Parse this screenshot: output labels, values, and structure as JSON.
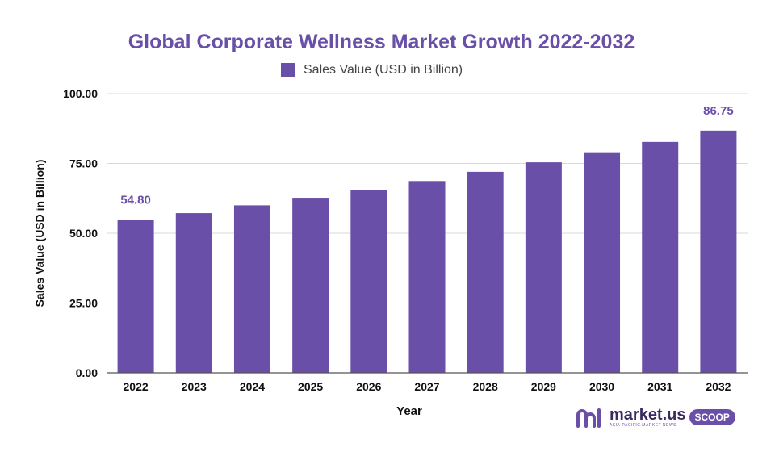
{
  "chart_data": {
    "type": "bar",
    "title": "Global Corporate Wellness Market Growth 2022-2032",
    "legend": "Sales Value (USD in Billion)",
    "xlabel": "Year",
    "ylabel": "Sales Value (USD in Billion)",
    "categories": [
      "2022",
      "2023",
      "2024",
      "2025",
      "2026",
      "2027",
      "2028",
      "2029",
      "2030",
      "2031",
      "2032"
    ],
    "series": [
      {
        "name": "Sales Value (USD in Billion)",
        "values": [
          54.8,
          57.2,
          60.0,
          62.7,
          65.6,
          68.7,
          72.0,
          75.4,
          79.0,
          82.7,
          86.75
        ]
      }
    ],
    "data_labels": [
      {
        "category": "2022",
        "text": "54.80"
      },
      {
        "category": "2032",
        "text": "86.75"
      }
    ],
    "yticks": [
      "0.00",
      "25.00",
      "50.00",
      "75.00",
      "100.00"
    ],
    "ylim": [
      0,
      100
    ],
    "grid": true,
    "legend_position": "top",
    "colors": {
      "bar": "#6a4fa8",
      "grid": "#d9d9d9",
      "axis": "#555555",
      "title": "#6a4fa8"
    }
  },
  "logo": {
    "brand": "market.us",
    "tagline": "ASIA-PACIFIC MARKET NEWS",
    "badge": "SCOOP"
  }
}
